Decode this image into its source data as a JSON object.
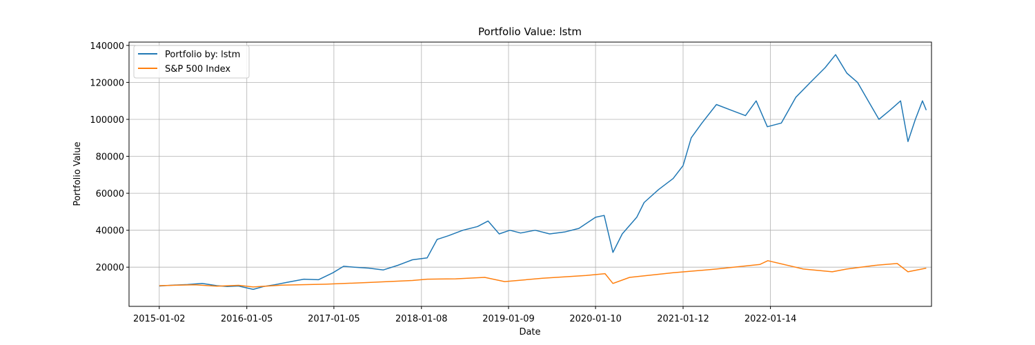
{
  "chart_data": {
    "type": "line",
    "title": "Portfolio Value: lstm",
    "xlabel": "Date",
    "ylabel": "Portfolio Value",
    "x_ticks": [
      "2015-01-02",
      "2016-01-05",
      "2017-01-05",
      "2018-01-08",
      "2019-01-09",
      "2020-01-10",
      "2021-01-12",
      "2022-01-14"
    ],
    "xlim": [
      "2014-08-28",
      "2023-11-22"
    ],
    "ylim": [
      -1200,
      141800
    ],
    "y_ticks": [
      20000,
      40000,
      60000,
      80000,
      100000,
      120000,
      140000
    ],
    "grid": true,
    "legend_position": "top-left",
    "series": [
      {
        "name": "Portfolio by: lstm",
        "color": "#1f77b4",
        "points": [
          [
            "2015-01-02",
            9800
          ],
          [
            "2015-03-01",
            10300
          ],
          [
            "2015-05-01",
            10600
          ],
          [
            "2015-07-01",
            11200
          ],
          [
            "2015-09-01",
            10000
          ],
          [
            "2015-10-15",
            9500
          ],
          [
            "2015-12-01",
            9800
          ],
          [
            "2016-02-01",
            8000
          ],
          [
            "2016-03-15",
            9500
          ],
          [
            "2016-05-01",
            10500
          ],
          [
            "2016-07-01",
            12000
          ],
          [
            "2016-09-01",
            13500
          ],
          [
            "2016-11-01",
            13200
          ],
          [
            "2017-01-01",
            17000
          ],
          [
            "2017-02-15",
            20500
          ],
          [
            "2017-04-01",
            20000
          ],
          [
            "2017-06-01",
            19500
          ],
          [
            "2017-08-01",
            18500
          ],
          [
            "2017-10-01",
            21000
          ],
          [
            "2017-12-01",
            24000
          ],
          [
            "2018-02-01",
            25000
          ],
          [
            "2018-03-15",
            35000
          ],
          [
            "2018-05-01",
            37000
          ],
          [
            "2018-07-01",
            40000
          ],
          [
            "2018-09-01",
            42000
          ],
          [
            "2018-10-15",
            45000
          ],
          [
            "2018-12-01",
            38000
          ],
          [
            "2019-01-15",
            40000
          ],
          [
            "2019-03-01",
            38500
          ],
          [
            "2019-05-01",
            40000
          ],
          [
            "2019-07-01",
            38000
          ],
          [
            "2019-09-01",
            39000
          ],
          [
            "2019-11-01",
            41000
          ],
          [
            "2020-01-10",
            47000
          ],
          [
            "2020-02-15",
            48000
          ],
          [
            "2020-03-23",
            28000
          ],
          [
            "2020-05-01",
            38000
          ],
          [
            "2020-07-01",
            47000
          ],
          [
            "2020-08-01",
            55000
          ],
          [
            "2020-10-01",
            62000
          ],
          [
            "2020-12-01",
            68000
          ],
          [
            "2021-01-12",
            75000
          ],
          [
            "2021-02-15",
            90000
          ],
          [
            "2021-04-01",
            98000
          ],
          [
            "2021-06-01",
            108000
          ],
          [
            "2021-08-01",
            105000
          ],
          [
            "2021-10-01",
            102000
          ],
          [
            "2021-11-15",
            110000
          ],
          [
            "2022-01-01",
            96000
          ],
          [
            "2022-03-01",
            98000
          ],
          [
            "2022-05-01",
            112000
          ],
          [
            "2022-07-01",
            120000
          ],
          [
            "2022-09-01",
            128000
          ],
          [
            "2022-10-15",
            135000
          ],
          [
            "2022-12-01",
            125000
          ],
          [
            "2023-01-15",
            120000
          ],
          [
            "2023-03-01",
            110000
          ],
          [
            "2023-04-15",
            100000
          ],
          [
            "2023-06-01",
            105000
          ],
          [
            "2023-07-15",
            110000
          ],
          [
            "2023-08-15",
            88000
          ],
          [
            "2023-09-15",
            100000
          ],
          [
            "2023-10-15",
            110000
          ],
          [
            "2023-10-31",
            105000
          ]
        ]
      },
      {
        "name": "S&P 500 Index",
        "color": "#ff7f0e",
        "points": [
          [
            "2015-01-02",
            10000
          ],
          [
            "2015-06-01",
            10500
          ],
          [
            "2015-09-01",
            9700
          ],
          [
            "2015-12-01",
            10200
          ],
          [
            "2016-02-01",
            9300
          ],
          [
            "2016-06-01",
            10300
          ],
          [
            "2016-12-01",
            10800
          ],
          [
            "2017-06-01",
            11700
          ],
          [
            "2017-12-01",
            12800
          ],
          [
            "2018-02-01",
            13500
          ],
          [
            "2018-06-01",
            13700
          ],
          [
            "2018-10-01",
            14500
          ],
          [
            "2018-12-24",
            12200
          ],
          [
            "2019-06-01",
            14000
          ],
          [
            "2019-12-01",
            15500
          ],
          [
            "2020-02-19",
            16500
          ],
          [
            "2020-03-23",
            11200
          ],
          [
            "2020-06-01",
            14500
          ],
          [
            "2020-12-01",
            17000
          ],
          [
            "2021-06-01",
            19000
          ],
          [
            "2021-12-01",
            21500
          ],
          [
            "2022-01-03",
            23500
          ],
          [
            "2022-06-01",
            19000
          ],
          [
            "2022-10-01",
            17500
          ],
          [
            "2022-12-01",
            19000
          ],
          [
            "2023-04-01",
            21000
          ],
          [
            "2023-07-01",
            22000
          ],
          [
            "2023-08-15",
            17500
          ],
          [
            "2023-10-31",
            19500
          ]
        ]
      }
    ]
  }
}
